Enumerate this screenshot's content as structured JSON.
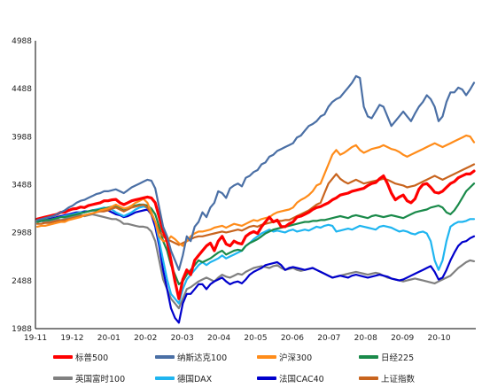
{
  "chart_data": {
    "type": "line",
    "title": "",
    "xlabel": "",
    "ylabel": "",
    "ylim": [
      1988,
      4988
    ],
    "yticks": [
      1988,
      2488,
      2988,
      3488,
      3988,
      4488,
      4988
    ],
    "xticks": [
      "19-11",
      "19-12",
      "20-01",
      "20-02",
      "20-03",
      "20-04",
      "20-05",
      "20-06",
      "20-07",
      "20-08",
      "20-09",
      "20-10"
    ],
    "grid": false,
    "legend_position": "bottom",
    "series": [
      {
        "name": "标普500",
        "color": "#ff0000",
        "width": 3.2,
        "values": [
          3130,
          3140,
          3150,
          3160,
          3170,
          3180,
          3200,
          3200,
          3220,
          3235,
          3240,
          3255,
          3250,
          3270,
          3280,
          3290,
          3300,
          3320,
          3320,
          3330,
          3335,
          3300,
          3280,
          3300,
          3320,
          3330,
          3340,
          3350,
          3360,
          3350,
          3300,
          3150,
          3000,
          2900,
          2700,
          2480,
          2300,
          2500,
          2600,
          2550,
          2700,
          2750,
          2800,
          2850,
          2880,
          2800,
          2900,
          2950,
          2870,
          2850,
          2900,
          2880,
          2870,
          2950,
          2980,
          3000,
          2980,
          3050,
          3100,
          3150,
          3100,
          3120,
          3050,
          3050,
          3080,
          3100,
          3150,
          3160,
          3180,
          3200,
          3230,
          3250,
          3260,
          3280,
          3300,
          3330,
          3350,
          3380,
          3390,
          3400,
          3420,
          3430,
          3440,
          3450,
          3480,
          3500,
          3510,
          3550,
          3580,
          3500,
          3400,
          3330,
          3360,
          3380,
          3320,
          3300,
          3340,
          3440,
          3490,
          3500,
          3460,
          3410,
          3400,
          3420,
          3460,
          3500,
          3520,
          3560,
          3580,
          3600,
          3600,
          3630
        ]
      },
      {
        "name": "纳斯达克100",
        "color": "#4a6fa5",
        "width": 2.2,
        "values": [
          3120,
          3130,
          3140,
          3150,
          3160,
          3180,
          3200,
          3220,
          3250,
          3270,
          3300,
          3320,
          3330,
          3350,
          3370,
          3390,
          3400,
          3420,
          3420,
          3430,
          3440,
          3420,
          3400,
          3430,
          3460,
          3480,
          3500,
          3520,
          3540,
          3530,
          3450,
          3250,
          3050,
          2950,
          2800,
          2700,
          2600,
          2750,
          2950,
          2900,
          3050,
          3100,
          3200,
          3150,
          3250,
          3300,
          3420,
          3400,
          3350,
          3450,
          3480,
          3500,
          3470,
          3560,
          3580,
          3620,
          3640,
          3700,
          3720,
          3780,
          3800,
          3840,
          3860,
          3880,
          3900,
          3920,
          3980,
          4000,
          4050,
          4100,
          4120,
          4150,
          4200,
          4220,
          4300,
          4350,
          4380,
          4400,
          4450,
          4500,
          4550,
          4620,
          4600,
          4300,
          4200,
          4180,
          4250,
          4320,
          4300,
          4200,
          4100,
          4150,
          4200,
          4250,
          4200,
          4150,
          4230,
          4300,
          4350,
          4420,
          4380,
          4300,
          4150,
          4200,
          4350,
          4450,
          4450,
          4500,
          4480,
          4420,
          4480,
          4550
        ]
      },
      {
        "name": "沪深300",
        "color": "#ff8c1a",
        "width": 2.2,
        "values": [
          3050,
          3060,
          3060,
          3070,
          3080,
          3090,
          3100,
          3100,
          3120,
          3130,
          3140,
          3150,
          3170,
          3180,
          3190,
          3200,
          3220,
          3230,
          3240,
          3260,
          3280,
          3260,
          3240,
          3250,
          3270,
          3300,
          3320,
          3340,
          3300,
          3200,
          3100,
          2950,
          2900,
          2900,
          2950,
          2920,
          2880,
          2850,
          2900,
          2950,
          2980,
          3000,
          3000,
          3010,
          3020,
          3040,
          3050,
          3060,
          3040,
          3060,
          3080,
          3070,
          3060,
          3080,
          3100,
          3120,
          3110,
          3130,
          3140,
          3150,
          3180,
          3200,
          3210,
          3220,
          3230,
          3250,
          3300,
          3330,
          3350,
          3380,
          3420,
          3480,
          3500,
          3600,
          3700,
          3800,
          3850,
          3800,
          3820,
          3850,
          3880,
          3900,
          3850,
          3820,
          3840,
          3860,
          3870,
          3880,
          3900,
          3880,
          3860,
          3850,
          3830,
          3800,
          3780,
          3800,
          3820,
          3840,
          3860,
          3880,
          3900,
          3920,
          3900,
          3880,
          3900,
          3920,
          3940,
          3960,
          3980,
          4000,
          3990,
          3930
        ]
      },
      {
        "name": "日经225",
        "color": "#1a8a4a",
        "width": 2.2,
        "values": [
          3100,
          3110,
          3120,
          3120,
          3130,
          3140,
          3150,
          3150,
          3160,
          3170,
          3180,
          3190,
          3200,
          3210,
          3220,
          3220,
          3230,
          3240,
          3250,
          3260,
          3260,
          3240,
          3220,
          3240,
          3260,
          3270,
          3280,
          3280,
          3270,
          3240,
          3180,
          3050,
          2900,
          2800,
          2650,
          2550,
          2450,
          2480,
          2550,
          2600,
          2650,
          2700,
          2680,
          2700,
          2720,
          2750,
          2780,
          2800,
          2760,
          2780,
          2800,
          2810,
          2800,
          2850,
          2880,
          2900,
          2920,
          2950,
          2980,
          3000,
          3020,
          3030,
          3040,
          3050,
          3060,
          3070,
          3080,
          3090,
          3100,
          3100,
          3110,
          3110,
          3120,
          3120,
          3130,
          3140,
          3150,
          3160,
          3150,
          3140,
          3160,
          3170,
          3160,
          3150,
          3140,
          3160,
          3170,
          3160,
          3150,
          3160,
          3170,
          3160,
          3150,
          3140,
          3160,
          3180,
          3200,
          3210,
          3220,
          3230,
          3250,
          3260,
          3270,
          3250,
          3200,
          3180,
          3220,
          3280,
          3350,
          3420,
          3460,
          3500
        ]
      },
      {
        "name": "英国富时100",
        "color": "#808080",
        "width": 2.2,
        "values": [
          3100,
          3110,
          3100,
          3110,
          3120,
          3130,
          3120,
          3130,
          3140,
          3150,
          3160,
          3170,
          3160,
          3170,
          3180,
          3170,
          3160,
          3150,
          3140,
          3130,
          3130,
          3110,
          3080,
          3080,
          3070,
          3060,
          3050,
          3050,
          3040,
          3000,
          2900,
          2700,
          2500,
          2400,
          2300,
          2250,
          2200,
          2300,
          2400,
          2420,
          2450,
          2480,
          2500,
          2520,
          2500,
          2480,
          2520,
          2550,
          2530,
          2520,
          2540,
          2560,
          2550,
          2580,
          2600,
          2620,
          2630,
          2640,
          2630,
          2620,
          2640,
          2650,
          2620,
          2600,
          2610,
          2620,
          2600,
          2590,
          2600,
          2610,
          2620,
          2600,
          2580,
          2560,
          2540,
          2520,
          2530,
          2540,
          2550,
          2560,
          2570,
          2580,
          2570,
          2560,
          2550,
          2560,
          2570,
          2560,
          2540,
          2520,
          2510,
          2500,
          2490,
          2480,
          2490,
          2500,
          2510,
          2500,
          2490,
          2480,
          2470,
          2460,
          2480,
          2500,
          2520,
          2540,
          2580,
          2620,
          2650,
          2680,
          2700,
          2690
        ]
      },
      {
        "name": "德国DAX",
        "color": "#1fb5f0",
        "width": 2.2,
        "values": [
          3100,
          3110,
          3120,
          3120,
          3130,
          3140,
          3150,
          3160,
          3170,
          3180,
          3190,
          3200,
          3200,
          3210,
          3220,
          3230,
          3240,
          3250,
          3240,
          3230,
          3200,
          3180,
          3160,
          3180,
          3200,
          3230,
          3250,
          3260,
          3250,
          3200,
          3100,
          2900,
          2700,
          2500,
          2350,
          2300,
          2250,
          2400,
          2500,
          2550,
          2600,
          2650,
          2680,
          2650,
          2680,
          2700,
          2720,
          2750,
          2720,
          2740,
          2760,
          2780,
          2800,
          2850,
          2880,
          2920,
          2950,
          2980,
          3000,
          3020,
          3000,
          3010,
          3000,
          2990,
          3010,
          3020,
          3000,
          3010,
          3020,
          3010,
          3030,
          3050,
          3040,
          3060,
          3070,
          3060,
          3000,
          3010,
          3020,
          3030,
          3020,
          3040,
          3060,
          3050,
          3040,
          3030,
          3020,
          3050,
          3060,
          3050,
          3040,
          3020,
          3000,
          3010,
          3000,
          2980,
          2970,
          2990,
          3000,
          2980,
          2900,
          2700,
          2600,
          2700,
          2900,
          3050,
          3080,
          3100,
          3100,
          3110,
          3130,
          3130
        ]
      },
      {
        "name": "法国CAC40",
        "color": "#0000cc",
        "width": 2.2,
        "values": [
          3100,
          3110,
          3120,
          3130,
          3140,
          3150,
          3160,
          3170,
          3180,
          3190,
          3200,
          3200,
          3210,
          3210,
          3220,
          3220,
          3230,
          3230,
          3220,
          3200,
          3180,
          3170,
          3150,
          3160,
          3180,
          3200,
          3210,
          3220,
          3230,
          3180,
          3050,
          2850,
          2600,
          2400,
          2200,
          2100,
          2050,
          2250,
          2350,
          2350,
          2400,
          2450,
          2450,
          2400,
          2450,
          2480,
          2500,
          2520,
          2480,
          2450,
          2470,
          2480,
          2460,
          2500,
          2550,
          2580,
          2600,
          2620,
          2650,
          2660,
          2670,
          2680,
          2650,
          2600,
          2620,
          2630,
          2620,
          2610,
          2600,
          2610,
          2620,
          2600,
          2580,
          2560,
          2540,
          2520,
          2530,
          2540,
          2530,
          2520,
          2540,
          2550,
          2540,
          2530,
          2520,
          2530,
          2540,
          2550,
          2540,
          2530,
          2510,
          2500,
          2490,
          2500,
          2520,
          2540,
          2560,
          2580,
          2600,
          2620,
          2640,
          2580,
          2500,
          2520,
          2600,
          2700,
          2780,
          2850,
          2890,
          2900,
          2930,
          2950
        ]
      },
      {
        "name": "上证指数",
        "color": "#c8641e",
        "width": 2.2,
        "values": [
          3080,
          3080,
          3090,
          3090,
          3100,
          3110,
          3110,
          3120,
          3130,
          3140,
          3150,
          3160,
          3170,
          3180,
          3190,
          3200,
          3210,
          3210,
          3220,
          3240,
          3250,
          3230,
          3210,
          3230,
          3250,
          3260,
          3270,
          3280,
          3250,
          3180,
          3100,
          3000,
          2950,
          2920,
          2900,
          2880,
          2860,
          2880,
          2900,
          2920,
          2940,
          2950,
          2950,
          2960,
          2970,
          2980,
          2990,
          3000,
          2990,
          3000,
          3010,
          3020,
          3010,
          3030,
          3050,
          3060,
          3050,
          3070,
          3080,
          3090,
          3100,
          3110,
          3110,
          3120,
          3120,
          3140,
          3160,
          3180,
          3200,
          3220,
          3250,
          3280,
          3300,
          3400,
          3500,
          3550,
          3600,
          3550,
          3520,
          3500,
          3520,
          3540,
          3520,
          3500,
          3510,
          3520,
          3530,
          3540,
          3550,
          3540,
          3520,
          3500,
          3490,
          3480,
          3460,
          3470,
          3480,
          3500,
          3520,
          3540,
          3560,
          3580,
          3560,
          3540,
          3560,
          3580,
          3600,
          3620,
          3640,
          3660,
          3680,
          3700
        ]
      }
    ]
  }
}
